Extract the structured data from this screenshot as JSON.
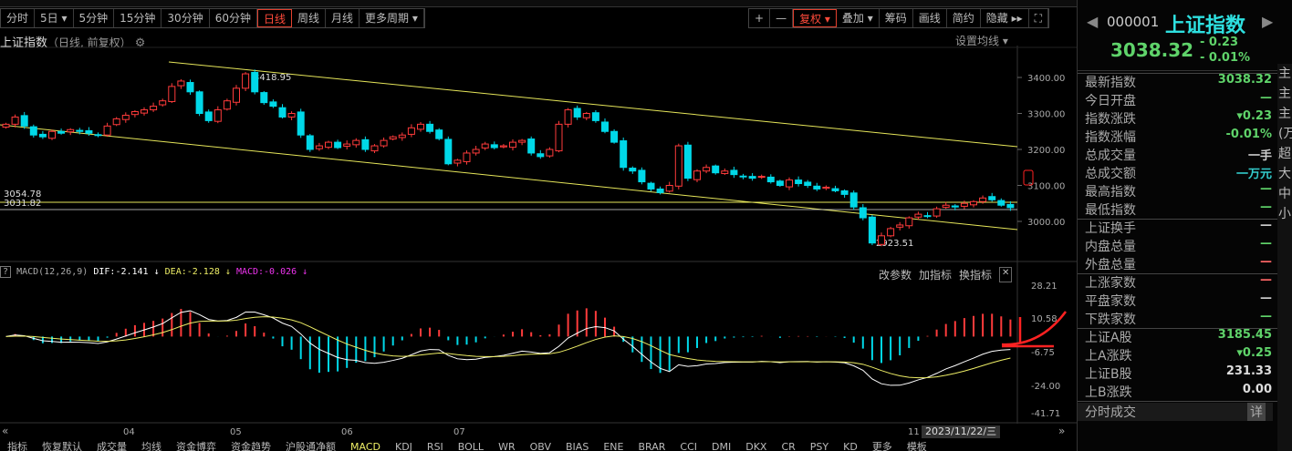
{
  "period_bar": [
    {
      "label": "分时"
    },
    {
      "label": "5日 ▾"
    },
    {
      "label": "5分钟"
    },
    {
      "label": "15分钟"
    },
    {
      "label": "30分钟"
    },
    {
      "label": "60分钟"
    },
    {
      "label": "日线",
      "active": true
    },
    {
      "label": "周线"
    },
    {
      "label": "月线"
    },
    {
      "label": "更多周期 ▾"
    }
  ],
  "tool_bar": [
    {
      "label": "+"
    },
    {
      "label": "—"
    },
    {
      "label": "复权 ▾",
      "active": true
    },
    {
      "label": "叠加 ▾"
    },
    {
      "label": "筹码"
    },
    {
      "label": "画线"
    },
    {
      "label": "简约"
    },
    {
      "label": "隐藏 ▸▸"
    },
    {
      "label": "⛶"
    }
  ],
  "chart": {
    "title": "上证指数",
    "subtitle": "（日线, 前复权）",
    "ma_setting": "设置均线 ▾",
    "price_ticks": [
      "3400.00",
      "3300.00",
      "3200.00",
      "3100.00",
      "3000.00"
    ],
    "annotations": {
      "high": "3418.95",
      "low": "2923.51",
      "level1": "3054.78",
      "level2": "3031.82"
    },
    "x_labels": [
      "04",
      "05",
      "06",
      "07",
      "11"
    ],
    "date": "2023/11/22/三",
    "closes": [
      3270,
      3290,
      3265,
      3240,
      3235,
      3250,
      3245,
      3255,
      3250,
      3245,
      3240,
      3265,
      3285,
      3295,
      3305,
      3310,
      3320,
      3335,
      3375,
      3390,
      3360,
      3300,
      3280,
      3310,
      3335,
      3370,
      3410,
      3360,
      3330,
      3320,
      3290,
      3300,
      3240,
      3200,
      3210,
      3220,
      3205,
      3215,
      3225,
      3200,
      3210,
      3225,
      3235,
      3240,
      3260,
      3270,
      3250,
      3230,
      3160,
      3170,
      3190,
      3200,
      3215,
      3205,
      3210,
      3220,
      3225,
      3190,
      3180,
      3200,
      3270,
      3310,
      3290,
      3300,
      3280,
      3250,
      3220,
      3150,
      3140,
      3110,
      3090,
      3080,
      3100,
      3210,
      3120,
      3140,
      3150,
      3135,
      3140,
      3130,
      3125,
      3120,
      3125,
      3110,
      3100,
      3115,
      3105,
      3100,
      3090,
      3095,
      3085,
      3075,
      3040,
      3010,
      2940,
      2960,
      2980,
      2990,
      3010,
      3020,
      3015,
      3035,
      3045,
      3040,
      3050,
      3055,
      3065,
      3060,
      3045,
      3038.32
    ],
    "colors": {
      "up": "#ff3b3b",
      "down": "#00d8e8",
      "trend": "#e6e65a"
    }
  },
  "macd": {
    "name": "MACD(12,26,9)",
    "dif": "DIF:-2.141 ↓",
    "dea": "DEA:-2.128 ↓",
    "macd": "MACD:-0.026 ↓",
    "ticks": [
      "28.21",
      "10.58",
      "-6.75",
      "-24.00",
      "-41.71"
    ],
    "tools": [
      "改参数",
      "加指标",
      "换指标",
      "✕"
    ]
  },
  "bottom_tabs": [
    "指标",
    "恢复默认",
    "成交量",
    "均线",
    "资金博弈",
    "资金趋势",
    "沪股通净额",
    "MACD",
    "KDJ",
    "RSI",
    "BOLL",
    "WR",
    "OBV",
    "BIAS",
    "ENE",
    "BRAR",
    "CCI",
    "DMI",
    "DKX",
    "CR",
    "PSY",
    "KD",
    "更多",
    "模板"
  ],
  "quote": {
    "code": "000001",
    "name": "上证指数",
    "price": "3038.32",
    "change": "- 0.23",
    "pct": "- 0.01%",
    "rows1": [
      [
        "最新指数",
        "3038.32",
        "#5fd36a"
      ],
      [
        "今日开盘",
        "—",
        "#5fd36a"
      ],
      [
        "指数涨跌",
        "▾0.23",
        "#5fd36a"
      ],
      [
        "指数涨幅",
        "-0.01%",
        "#5fd36a"
      ],
      [
        "总成交量",
        "一手",
        "#ccc"
      ],
      [
        "总成交额",
        "一万元",
        "#3cc"
      ],
      [
        "最高指数",
        "—",
        "#5fd36a"
      ],
      [
        "最低指数",
        "—",
        "#5fd36a"
      ]
    ],
    "rows2": [
      [
        "上证换手",
        "—",
        "#ccc"
      ],
      [
        "内盘总量",
        "—",
        "#5fd36a"
      ],
      [
        "外盘总量",
        "—",
        "#f66"
      ]
    ],
    "rows3": [
      [
        "上涨家数",
        "—",
        "#f66"
      ],
      [
        "平盘家数",
        "—",
        "#ccc"
      ],
      [
        "下跌家数",
        "—",
        "#5fd36a"
      ]
    ],
    "rows4": [
      [
        "上证A股",
        "3185.45",
        "#5fd36a"
      ],
      [
        "上A涨跌",
        "▾0.25",
        "#5fd36a"
      ],
      [
        "上证B股",
        "231.33",
        "#ddd"
      ],
      [
        "上B涨跌",
        "0.00",
        "#ddd"
      ]
    ],
    "trades_label": "分时成交",
    "trades_detail": "详"
  },
  "edge_chars": [
    "主",
    "主",
    "主",
    "(万",
    "超",
    "大",
    "中",
    "小"
  ]
}
